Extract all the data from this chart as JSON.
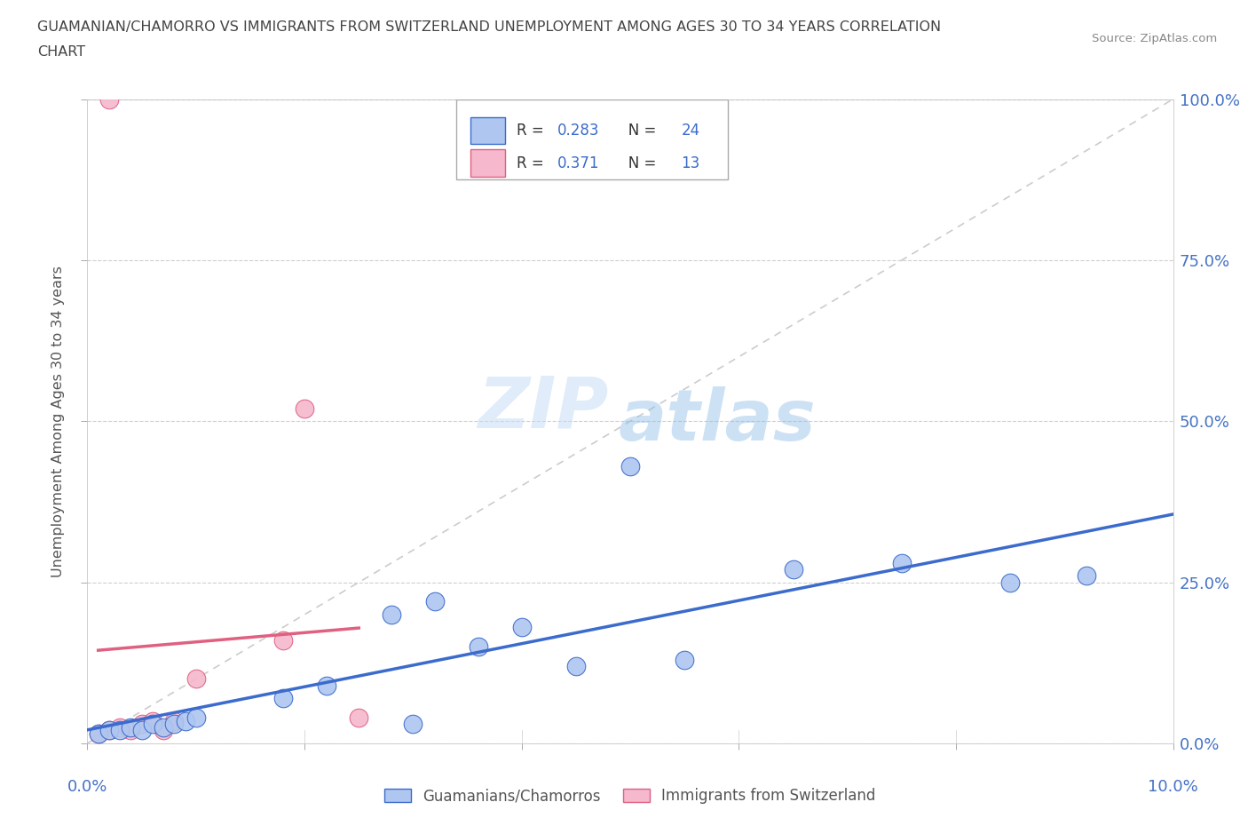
{
  "title_line1": "GUAMANIAN/CHAMORRO VS IMMIGRANTS FROM SWITZERLAND UNEMPLOYMENT AMONG AGES 30 TO 34 YEARS CORRELATION",
  "title_line2": "CHART",
  "source_text": "Source: ZipAtlas.com",
  "ylabel": "Unemployment Among Ages 30 to 34 years",
  "ytick_values": [
    0.0,
    25.0,
    50.0,
    75.0,
    100.0
  ],
  "xtick_values": [
    0.0,
    2.0,
    4.0,
    6.0,
    8.0,
    10.0
  ],
  "xlim": [
    0.0,
    10.0
  ],
  "ylim": [
    0.0,
    100.0
  ],
  "blue_scatter_x": [
    0.1,
    0.2,
    0.3,
    0.4,
    0.5,
    0.6,
    0.7,
    0.8,
    0.9,
    1.0,
    1.8,
    2.2,
    2.8,
    3.2,
    3.6,
    4.0,
    4.5,
    5.5,
    6.5,
    7.5,
    8.5,
    9.2,
    5.0,
    3.0
  ],
  "blue_scatter_y": [
    1.5,
    2.0,
    2.0,
    2.5,
    2.0,
    3.0,
    2.5,
    3.0,
    3.5,
    4.0,
    7.0,
    9.0,
    20.0,
    22.0,
    15.0,
    18.0,
    12.0,
    13.0,
    27.0,
    28.0,
    25.0,
    26.0,
    43.0,
    3.0
  ],
  "pink_scatter_x": [
    0.1,
    0.2,
    0.3,
    0.4,
    0.5,
    0.6,
    0.7,
    0.8,
    1.0,
    1.8,
    2.0,
    2.5,
    0.2
  ],
  "pink_scatter_y": [
    1.5,
    2.0,
    2.5,
    2.0,
    3.0,
    3.5,
    2.0,
    3.5,
    10.0,
    16.0,
    52.0,
    4.0,
    100.0
  ],
  "blue_R": 0.283,
  "blue_N": 24,
  "pink_R": 0.371,
  "pink_N": 13,
  "blue_line_color": "#3b6bcc",
  "pink_line_color": "#e06080",
  "blue_scatter_color": "#aec6f0",
  "pink_scatter_color": "#f5b8cc",
  "diag_color": "#cccccc",
  "grid_color": "#bbbbbb",
  "title_color": "#444444",
  "axis_label_color": "#4472c4",
  "watermark_zip": "ZIP",
  "watermark_atlas": "atlas",
  "legend_label_blue": "Guamanians/Chamorros",
  "legend_label_pink": "Immigrants from Switzerland"
}
